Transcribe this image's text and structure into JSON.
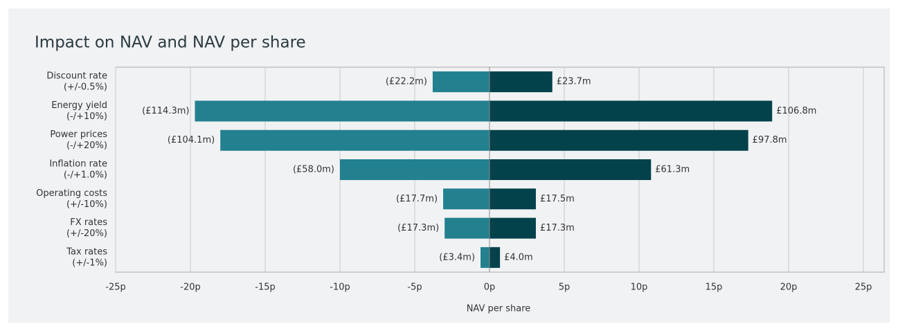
{
  "chart_data": {
    "type": "tornado",
    "title": "Impact on NAV and NAV per share",
    "categories": [
      [
        "Discount rate",
        "(+/-0.5%)"
      ],
      [
        "Energy yield",
        "(-/+10%)"
      ],
      [
        "Power prices",
        "(-/+20%)"
      ],
      [
        "Inflation rate",
        "(-/+1.0%)"
      ],
      [
        "Operating costs",
        "(+/-10%)"
      ],
      [
        "FX rates",
        "(+/-20%)"
      ],
      [
        "Tax rates",
        "(+/-1%)"
      ]
    ],
    "series": [
      {
        "color": "#23808f",
        "values": [
          -3.8,
          -19.7,
          -18.0,
          -10.0,
          -3.1,
          -3.0,
          -0.6
        ],
        "value_labels": [
          "(£22.2m)",
          "(£114.3m)",
          "(£104.1m)",
          "(£58.0m)",
          "(£17.7m)",
          "(£17.3m)",
          "(£3.4m)"
        ]
      },
      {
        "color": "#03424b",
        "values": [
          4.2,
          18.9,
          17.3,
          10.8,
          3.1,
          3.1,
          0.7
        ],
        "value_labels": [
          "£23.7m",
          "£106.8m",
          "£97.8m",
          "£61.3m",
          "£17.5m",
          "£17.3m",
          "£4.0m"
        ]
      }
    ],
    "xlabel": "NAV per share",
    "xlim": [
      -25,
      25
    ],
    "xticks": [
      {
        "value": -25,
        "label": "-25p"
      },
      {
        "value": -20,
        "label": "-20p"
      },
      {
        "value": -15,
        "label": "-15p"
      },
      {
        "value": -10,
        "label": "-10p"
      },
      {
        "value": -5,
        "label": "-5p"
      },
      {
        "value": 0,
        "label": "0p"
      },
      {
        "value": 5,
        "label": "5p"
      },
      {
        "value": 10,
        "label": "10p"
      },
      {
        "value": 15,
        "label": "15p"
      },
      {
        "value": 20,
        "label": "20p"
      },
      {
        "value": 25,
        "label": "25p"
      }
    ],
    "grid": true
  }
}
